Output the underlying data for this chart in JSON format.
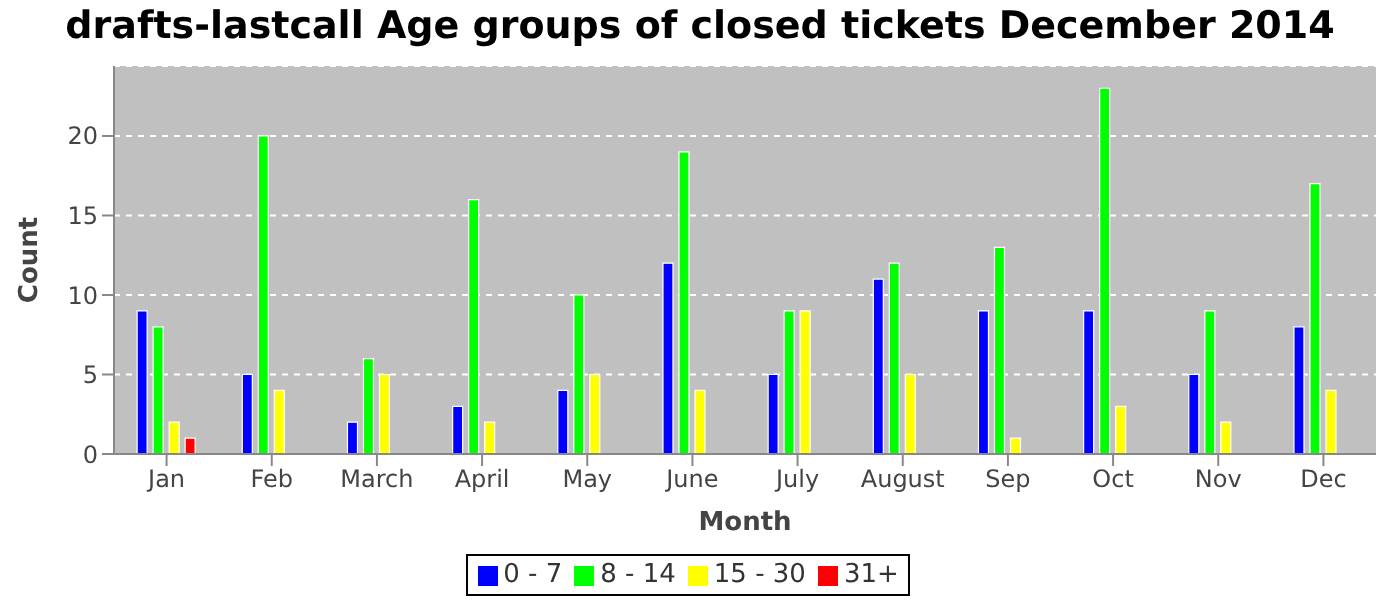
{
  "chart_data": {
    "type": "bar",
    "title": "drafts-lastcall Age groups of closed tickets December 2014",
    "xlabel": "Month",
    "ylabel": "Count",
    "categories": [
      "Jan",
      "Feb",
      "March",
      "April",
      "May",
      "June",
      "July",
      "August",
      "Sep",
      "Oct",
      "Nov",
      "Dec"
    ],
    "series": [
      {
        "name": "0 - 7",
        "color": "#0000ff",
        "values": [
          9,
          5,
          2,
          3,
          4,
          12,
          5,
          11,
          9,
          9,
          5,
          8
        ]
      },
      {
        "name": "8 - 14",
        "color": "#00ff00",
        "values": [
          8,
          20,
          6,
          16,
          10,
          19,
          9,
          12,
          13,
          23,
          9,
          17
        ]
      },
      {
        "name": "15 - 30",
        "color": "#ffff00",
        "values": [
          2,
          4,
          5,
          2,
          5,
          4,
          9,
          5,
          1,
          3,
          2,
          4
        ]
      },
      {
        "name": "31+",
        "color": "#ff0000",
        "values": [
          1,
          0,
          0,
          0,
          0,
          0,
          0,
          0,
          0,
          0,
          0,
          0
        ]
      }
    ],
    "ylim": [
      0,
      24.4
    ],
    "yticks": [
      0,
      5,
      10,
      15,
      20
    ],
    "grid": "y",
    "legend": "bottom"
  }
}
